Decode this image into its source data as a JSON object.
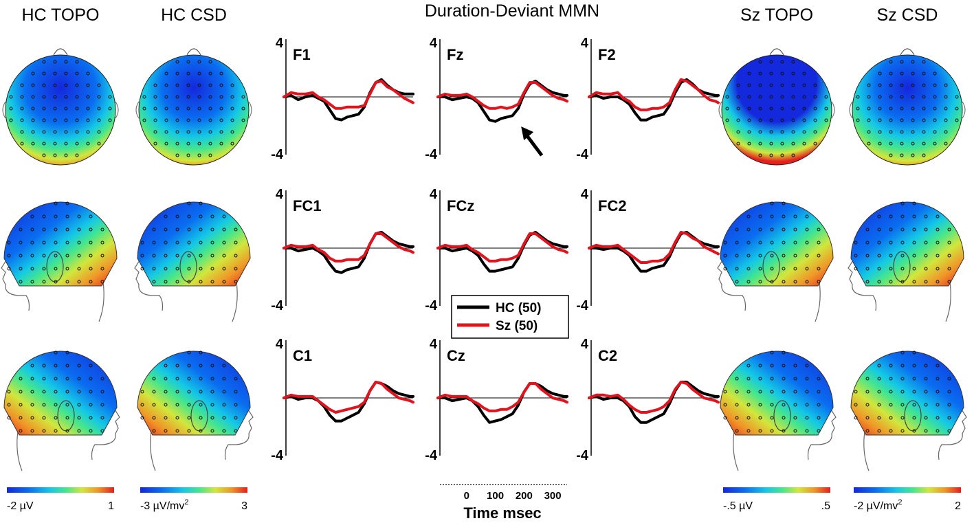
{
  "chart_data": {
    "type": "line",
    "title": "Duration-Deviant MMN",
    "xlabel": "Time msec",
    "x_tick_labels": [
      "0",
      "100",
      "200",
      "300"
    ],
    "xlim": [
      -100,
      350
    ],
    "ylim": [
      -4,
      4
    ],
    "y_tick_labels": [
      "4",
      "-4"
    ],
    "legend": {
      "position": "center",
      "entries": [
        {
          "label": "HC (50)",
          "color": "#000000"
        },
        {
          "label": "Sz (50)",
          "color": "#e0141e"
        }
      ]
    },
    "annotations": [
      {
        "type": "arrow",
        "channel": "Fz",
        "x": 190,
        "y": -1.1
      }
    ],
    "x": [
      -100,
      -75,
      -50,
      -25,
      0,
      20,
      40,
      60,
      80,
      100,
      120,
      140,
      160,
      180,
      200,
      220,
      240,
      260,
      280,
      300,
      320,
      340,
      350
    ],
    "panels": [
      {
        "channel": "F1",
        "series": [
          {
            "name": "HC (50)",
            "values": [
              0.0,
              0.1,
              -0.2,
              0.0,
              0.1,
              -0.1,
              -0.3,
              -0.9,
              -1.5,
              -1.6,
              -1.4,
              -1.3,
              -1.2,
              -0.7,
              0.3,
              1.0,
              1.2,
              0.8,
              0.5,
              0.3,
              0.2,
              0.2,
              0.2
            ]
          },
          {
            "name": "Sz (50)",
            "values": [
              0.0,
              0.3,
              0.2,
              0.2,
              0.3,
              0.0,
              -0.2,
              -0.5,
              -0.8,
              -0.8,
              -0.7,
              -0.7,
              -0.7,
              -0.6,
              0.2,
              1.0,
              1.1,
              0.7,
              0.5,
              0.2,
              -0.1,
              -0.3,
              -0.4
            ]
          }
        ]
      },
      {
        "channel": "Fz",
        "series": [
          {
            "name": "HC (50)",
            "values": [
              0.0,
              0.0,
              -0.2,
              -0.1,
              0.0,
              -0.1,
              -0.4,
              -1.0,
              -1.6,
              -1.7,
              -1.5,
              -1.4,
              -1.3,
              -0.8,
              0.2,
              0.9,
              1.1,
              0.8,
              0.5,
              0.3,
              0.2,
              0.1,
              0.1
            ]
          },
          {
            "name": "Sz (50)",
            "values": [
              0.0,
              0.2,
              0.1,
              0.1,
              0.2,
              0.0,
              -0.3,
              -0.6,
              -0.8,
              -0.8,
              -0.7,
              -0.8,
              -0.7,
              -0.5,
              0.3,
              1.0,
              1.0,
              0.7,
              0.4,
              0.1,
              -0.1,
              -0.2,
              -0.3
            ]
          }
        ]
      },
      {
        "channel": "F2",
        "series": [
          {
            "name": "HC (50)",
            "values": [
              0.0,
              0.1,
              -0.1,
              0.0,
              0.0,
              -0.2,
              -0.5,
              -1.1,
              -1.6,
              -1.6,
              -1.4,
              -1.3,
              -1.2,
              -0.6,
              0.3,
              1.0,
              1.2,
              0.9,
              0.5,
              0.3,
              0.2,
              0.1,
              0.1
            ]
          },
          {
            "name": "Sz (50)",
            "values": [
              0.0,
              0.3,
              0.2,
              0.2,
              0.3,
              -0.1,
              -0.3,
              -0.7,
              -0.9,
              -0.9,
              -0.8,
              -0.8,
              -0.7,
              -0.4,
              0.5,
              1.2,
              1.1,
              0.8,
              0.5,
              0.1,
              -0.2,
              -0.3,
              -0.4
            ]
          }
        ]
      },
      {
        "channel": "FC1",
        "series": [
          {
            "name": "HC (50)",
            "values": [
              0.0,
              0.0,
              -0.2,
              -0.1,
              0.0,
              -0.2,
              -0.5,
              -1.1,
              -1.6,
              -1.7,
              -1.5,
              -1.4,
              -1.3,
              -0.7,
              0.3,
              1.0,
              1.1,
              0.8,
              0.5,
              0.3,
              0.2,
              0.1,
              0.1
            ]
          },
          {
            "name": "Sz (50)",
            "values": [
              0.0,
              0.2,
              0.1,
              0.1,
              0.2,
              -0.1,
              -0.3,
              -0.7,
              -0.9,
              -0.9,
              -0.8,
              -0.8,
              -0.8,
              -0.5,
              0.3,
              1.0,
              1.0,
              0.7,
              0.4,
              0.1,
              -0.1,
              -0.2,
              -0.3
            ]
          }
        ]
      },
      {
        "channel": "FCz",
        "series": [
          {
            "name": "HC (50)",
            "values": [
              0.0,
              0.0,
              -0.2,
              -0.1,
              0.0,
              -0.2,
              -0.5,
              -1.1,
              -1.6,
              -1.6,
              -1.5,
              -1.4,
              -1.3,
              -0.7,
              0.2,
              0.9,
              1.1,
              0.8,
              0.5,
              0.3,
              0.2,
              0.1,
              0.1
            ]
          },
          {
            "name": "Sz (50)",
            "values": [
              0.0,
              0.2,
              0.1,
              0.1,
              0.2,
              -0.1,
              -0.3,
              -0.6,
              -0.9,
              -0.9,
              -0.8,
              -0.8,
              -0.7,
              -0.5,
              0.3,
              1.0,
              1.0,
              0.7,
              0.4,
              0.1,
              -0.1,
              -0.2,
              -0.3
            ]
          }
        ]
      },
      {
        "channel": "FC2",
        "series": [
          {
            "name": "HC (50)",
            "values": [
              0.0,
              0.0,
              -0.1,
              0.0,
              0.0,
              -0.2,
              -0.5,
              -1.1,
              -1.6,
              -1.6,
              -1.4,
              -1.3,
              -1.2,
              -0.6,
              0.3,
              1.0,
              1.1,
              0.8,
              0.5,
              0.3,
              0.2,
              0.1,
              0.1
            ]
          },
          {
            "name": "Sz (50)",
            "values": [
              0.0,
              0.2,
              0.1,
              0.1,
              0.2,
              -0.1,
              -0.4,
              -0.7,
              -1.0,
              -1.0,
              -0.9,
              -0.9,
              -0.8,
              -0.4,
              0.4,
              1.1,
              1.0,
              0.7,
              0.5,
              0.1,
              -0.1,
              -0.3,
              -0.4
            ]
          }
        ]
      },
      {
        "channel": "C1",
        "series": [
          {
            "name": "HC (50)",
            "values": [
              0.0,
              0.1,
              -0.1,
              0.0,
              0.0,
              -0.2,
              -0.6,
              -1.2,
              -1.6,
              -1.6,
              -1.4,
              -1.2,
              -1.0,
              -0.4,
              0.5,
              1.1,
              1.0,
              0.8,
              0.5,
              0.3,
              0.2,
              0.1,
              0.1
            ]
          },
          {
            "name": "Sz (50)",
            "values": [
              0.0,
              0.2,
              0.1,
              0.1,
              0.1,
              -0.2,
              -0.5,
              -0.8,
              -1.0,
              -0.9,
              -0.8,
              -0.7,
              -0.6,
              -0.3,
              0.5,
              1.1,
              1.0,
              0.6,
              0.3,
              0.0,
              -0.1,
              -0.2,
              -0.3
            ]
          }
        ]
      },
      {
        "channel": "Cz",
        "series": [
          {
            "name": "HC (50)",
            "values": [
              0.0,
              0.0,
              -0.2,
              -0.1,
              0.0,
              -0.2,
              -0.6,
              -1.2,
              -1.7,
              -1.6,
              -1.5,
              -1.3,
              -1.1,
              -0.5,
              0.4,
              1.0,
              1.0,
              0.8,
              0.5,
              0.3,
              0.2,
              0.1,
              0.1
            ]
          },
          {
            "name": "Sz (50)",
            "values": [
              0.0,
              0.2,
              0.1,
              0.1,
              0.1,
              -0.2,
              -0.4,
              -0.7,
              -0.9,
              -0.9,
              -0.8,
              -0.8,
              -0.6,
              -0.3,
              0.4,
              1.0,
              1.0,
              0.6,
              0.3,
              0.0,
              -0.1,
              -0.2,
              -0.3
            ]
          }
        ]
      },
      {
        "channel": "C2",
        "series": [
          {
            "name": "HC (50)",
            "values": [
              0.0,
              0.1,
              -0.1,
              0.0,
              0.0,
              -0.2,
              -0.6,
              -1.3,
              -1.7,
              -1.7,
              -1.5,
              -1.3,
              -1.1,
              -0.4,
              0.5,
              1.1,
              1.1,
              0.8,
              0.5,
              0.3,
              0.2,
              0.1,
              0.1
            ]
          },
          {
            "name": "Sz (50)",
            "values": [
              0.0,
              0.2,
              0.2,
              0.1,
              0.2,
              -0.1,
              -0.5,
              -0.8,
              -1.0,
              -1.0,
              -0.9,
              -0.8,
              -0.6,
              -0.2,
              0.6,
              1.1,
              1.0,
              0.6,
              0.3,
              0.0,
              -0.1,
              -0.2,
              -0.3
            ]
          }
        ]
      }
    ]
  },
  "topomaps": {
    "columns": [
      {
        "title": "HC TOPO",
        "colorbar": {
          "min_label": "-2 µV",
          "max_label": "1"
        }
      },
      {
        "title": "HC CSD",
        "colorbar": {
          "min_label": "-3 µV/mv",
          "min_label_sup": "2",
          "max_label": "3"
        }
      },
      {
        "title": "Sz TOPO",
        "colorbar": {
          "min_label": "-.5 µV",
          "max_label": ".5"
        }
      },
      {
        "title": "Sz CSD",
        "colorbar": {
          "min_label": "-2 µV/mv",
          "min_label_sup": "2",
          "max_label": "2"
        }
      }
    ],
    "views": [
      "top",
      "left",
      "right"
    ],
    "colormap": [
      "#1428dc",
      "#0a6ef0",
      "#14c8e6",
      "#46e68c",
      "#d2e63c",
      "#f09628",
      "#e61e1e"
    ]
  }
}
